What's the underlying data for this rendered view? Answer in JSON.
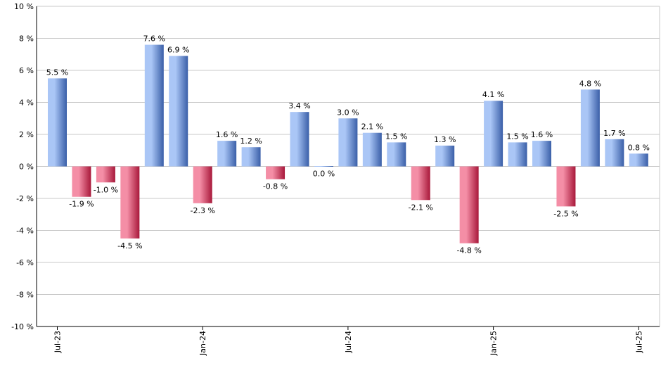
{
  "chart_data": {
    "type": "bar",
    "categories": [
      "Jul-23",
      "Aug-23",
      "Sep-23",
      "Oct-23",
      "Nov-23",
      "Dec-23",
      "Jan-24",
      "Feb-24",
      "Mar-24",
      "Apr-24",
      "May-24",
      "Jun-24",
      "Jul-24",
      "Aug-24",
      "Sep-24",
      "Oct-24",
      "Nov-24",
      "Dec-24",
      "Jan-25",
      "Feb-25",
      "Mar-25",
      "Apr-25",
      "May-25",
      "Jun-25",
      "Jul-25"
    ],
    "values": [
      5.5,
      -1.9,
      -1.0,
      -4.5,
      7.6,
      6.9,
      -2.3,
      1.6,
      1.2,
      -0.8,
      3.4,
      0.0,
      3.0,
      2.1,
      1.5,
      -2.1,
      1.3,
      -4.8,
      4.1,
      1.5,
      1.6,
      -2.5,
      4.8,
      1.7,
      0.8
    ],
    "value_labels": [
      "5.5 %",
      "-1.9 %",
      "-1.0 %",
      "-4.5 %",
      "7.6 %",
      "6.9 %",
      "-2.3 %",
      "1.6 %",
      "1.2 %",
      "-0.8 %",
      "3.4 %",
      "0.0 %",
      "3.0 %",
      "2.1 %",
      "1.5 %",
      "-2.1 %",
      "1.3 %",
      "-4.8 %",
      "4.1 %",
      "1.5 %",
      "1.6 %",
      "-2.5 %",
      "4.8 %",
      "1.7 %",
      "0.8 %"
    ],
    "x_tick_labels": [
      {
        "category_index": 0,
        "label": "Jul-23"
      },
      {
        "category_index": 6,
        "label": "Jan-24"
      },
      {
        "category_index": 12,
        "label": "Jul-24"
      },
      {
        "category_index": 18,
        "label": "Jan-25"
      },
      {
        "category_index": 24,
        "label": "Jul-25"
      }
    ],
    "y_ticks": [
      10,
      8,
      6,
      4,
      2,
      0,
      -2,
      -4,
      -6,
      -8,
      -10
    ],
    "y_tick_labels": [
      "10 %",
      "8 %",
      "6 %",
      "4 %",
      "2 %",
      "0 %",
      "-2 %",
      "-4 %",
      "-6 %",
      "-8 %",
      "-10 %"
    ],
    "ylim": [
      -10,
      10
    ],
    "grid": true,
    "title": "",
    "xlabel": "",
    "ylabel": "",
    "colors": {
      "positive_light": "#aac6f6",
      "positive_dark": "#3a5fa8",
      "negative_light": "#f48ea6",
      "negative_dark": "#a8183a",
      "grid": "#c8c8c8",
      "axis": "#000000"
    }
  }
}
